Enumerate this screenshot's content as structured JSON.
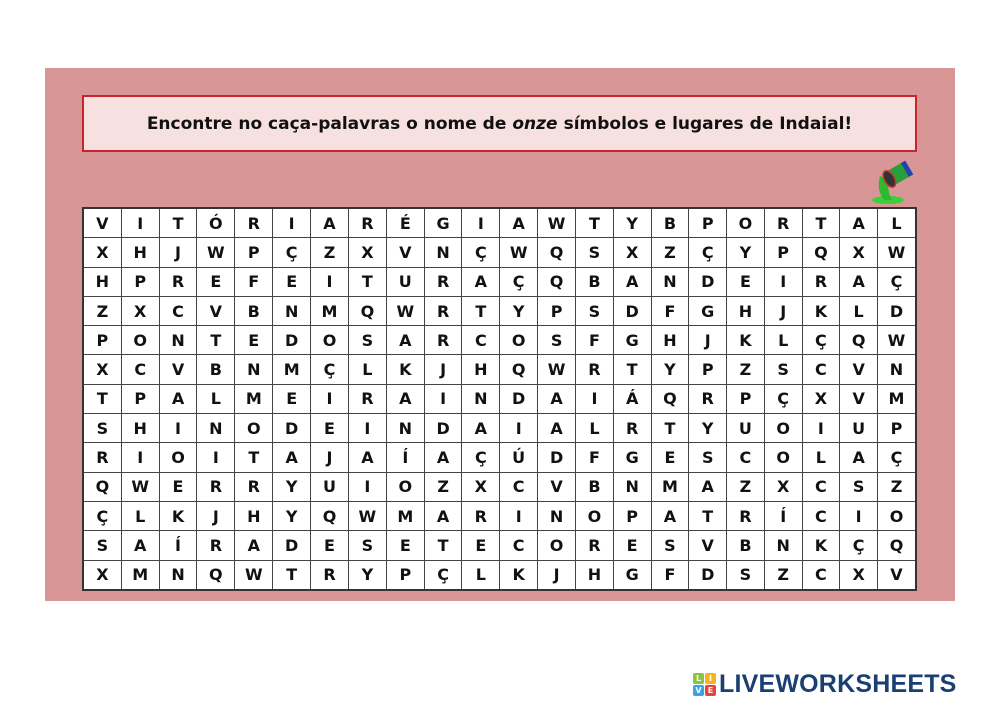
{
  "instruction": {
    "before": "Encontre no caça-palavras o nome de",
    "emphasis": "onze",
    "after": "símbolos e lugares de Indaial!"
  },
  "decoration_icon": "paint-bucket-spill-icon",
  "colors": {
    "panel": "#d99696",
    "title_border": "#c8242b",
    "title_bg": "#f6e0e0",
    "logo": "#1b3f73"
  },
  "grid": [
    [
      "V",
      "I",
      "T",
      "Ó",
      "R",
      "I",
      "A",
      "R",
      "É",
      "G",
      "I",
      "A",
      "W",
      "T",
      "Y",
      "B",
      "P",
      "O",
      "R",
      "T",
      "A",
      "L"
    ],
    [
      "X",
      "H",
      "J",
      "W",
      "P",
      "Ç",
      "Z",
      "X",
      "V",
      "N",
      "Ç",
      "W",
      "Q",
      "S",
      "X",
      "Z",
      "Ç",
      "Y",
      "P",
      "Q",
      "X",
      "W"
    ],
    [
      "H",
      "P",
      "R",
      "E",
      "F",
      "E",
      "I",
      "T",
      "U",
      "R",
      "A",
      "Ç",
      "Q",
      "B",
      "A",
      "N",
      "D",
      "E",
      "I",
      "R",
      "A",
      "Ç"
    ],
    [
      "Z",
      "X",
      "C",
      "V",
      "B",
      "N",
      "M",
      "Q",
      "W",
      "R",
      "T",
      "Y",
      "P",
      "S",
      "D",
      "F",
      "G",
      "H",
      "J",
      "K",
      "L",
      "D"
    ],
    [
      "P",
      "O",
      "N",
      "T",
      "E",
      "D",
      "O",
      "S",
      "A",
      "R",
      "C",
      "O",
      "S",
      "F",
      "G",
      "H",
      "J",
      "K",
      "L",
      "Ç",
      "Q",
      "W"
    ],
    [
      "X",
      "C",
      "V",
      "B",
      "N",
      "M",
      "Ç",
      "L",
      "K",
      "J",
      "H",
      "Q",
      "W",
      "R",
      "T",
      "Y",
      "P",
      "Z",
      "S",
      "C",
      "V",
      "N"
    ],
    [
      "T",
      "P",
      "A",
      "L",
      "M",
      "E",
      "I",
      "R",
      "A",
      "I",
      "N",
      "D",
      "A",
      "I",
      "Á",
      "Q",
      "R",
      "P",
      "Ç",
      "X",
      "V",
      "M"
    ],
    [
      "S",
      "H",
      "I",
      "N",
      "O",
      "D",
      "E",
      "I",
      "N",
      "D",
      "A",
      "I",
      "A",
      "L",
      "R",
      "T",
      "Y",
      "U",
      "O",
      "I",
      "U",
      "P"
    ],
    [
      "R",
      "I",
      "O",
      "I",
      "T",
      "A",
      "J",
      "A",
      "Í",
      "A",
      "Ç",
      "Ú",
      "D",
      "F",
      "G",
      "E",
      "S",
      "C",
      "O",
      "L",
      "A",
      "Ç"
    ],
    [
      "Q",
      "W",
      "E",
      "R",
      "R",
      "Y",
      "U",
      "I",
      "O",
      "Z",
      "X",
      "C",
      "V",
      "B",
      "N",
      "M",
      "A",
      "Z",
      "X",
      "C",
      "S",
      "Z"
    ],
    [
      "Ç",
      "L",
      "K",
      "J",
      "H",
      "Y",
      "Q",
      "W",
      "M",
      "A",
      "R",
      "I",
      "N",
      "O",
      "P",
      "A",
      "T",
      "R",
      "Í",
      "C",
      "I",
      "O"
    ],
    [
      "S",
      "A",
      "Í",
      "R",
      "A",
      "D",
      "E",
      "S",
      "E",
      "T",
      "E",
      "C",
      "O",
      "R",
      "E",
      "S",
      "V",
      "B",
      "N",
      "K",
      "Ç",
      "Q"
    ],
    [
      "X",
      "M",
      "N",
      "Q",
      "W",
      "T",
      "R",
      "Y",
      "P",
      "Ç",
      "L",
      "K",
      "J",
      "H",
      "G",
      "F",
      "D",
      "S",
      "Z",
      "C",
      "X",
      "V"
    ]
  ],
  "logo": {
    "tiles": [
      "L",
      "I",
      "V",
      "E"
    ],
    "text": "LIVEWORKSHEETS"
  }
}
